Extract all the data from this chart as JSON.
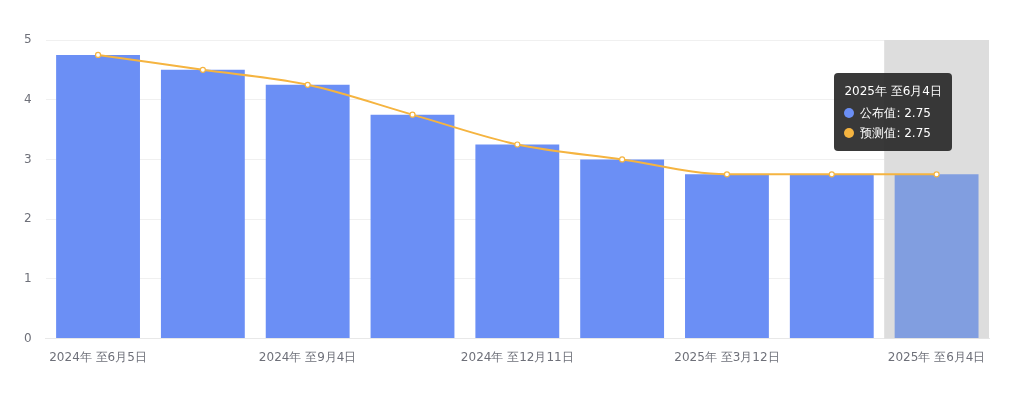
{
  "chart_data": {
    "type": "bar",
    "categories": [
      "2024年 至6月5日",
      null,
      "2024年 至9月4日",
      null,
      "2024年 至12月11日",
      null,
      "2025年 至3月12日",
      null,
      "2025年 至6月4日"
    ],
    "series": [
      {
        "color": "#6b8ff5",
        "colors": [
          "#6b8ff5",
          "#6b8ff5",
          "#6b8ff5",
          "#6b8ff5",
          "#6b8ff5",
          "#6b8ff5",
          "#6b8ff5",
          "#6b8ff5",
          "#819ee0"
        ],
        "values": [
          4.75,
          4.5,
          4.25,
          3.75,
          3.25,
          3.0,
          2.75,
          2.75,
          2.75
        ]
      },
      {
        "type": "line",
        "color": "#f5b440",
        "values": [
          4.75,
          4.5,
          4.25,
          3.75,
          3.25,
          3.0,
          2.75,
          2.75,
          2.75
        ]
      }
    ],
    "ylim": [
      0,
      5
    ],
    "yticks": [
      0,
      1,
      2,
      3,
      4,
      5
    ],
    "grid": "y",
    "marker": "circle",
    "line_style": "solid",
    "annotations": [
      "2025年 至6月4日",
      "公布值: 2.75",
      "预测值: 2.75"
    ],
    "bands": [
      {
        "axis": "x",
        "from": "2025年 至6月4日",
        "to": "2025年 至6月4日",
        "color": "#dddddd"
      }
    ]
  }
}
